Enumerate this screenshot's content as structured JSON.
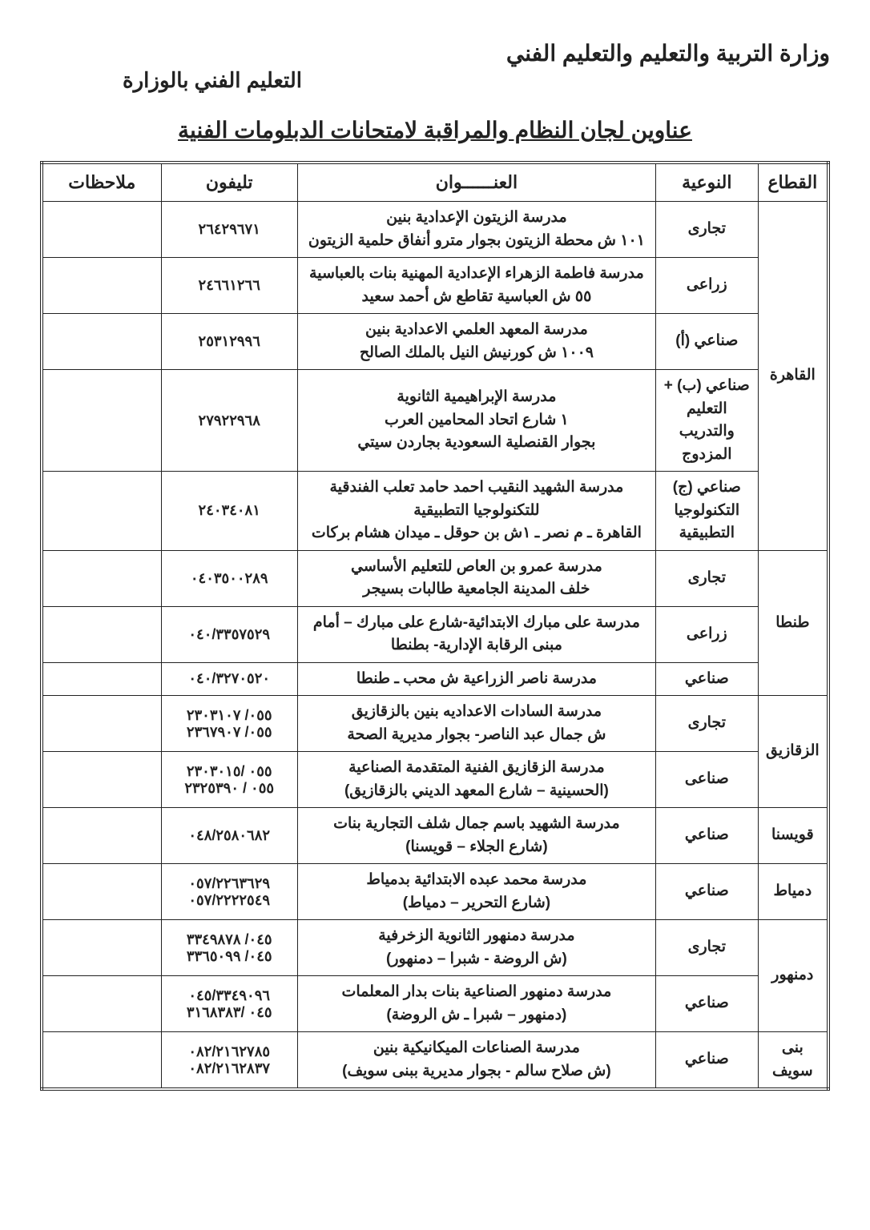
{
  "header": {
    "line1": "وزارة التربية والتعليم والتعليم الفني",
    "line2": "التعليم الفني بالوزارة"
  },
  "title": "عناوين لجان النظام والمراقبة لامتحانات الدبلومات الفنية",
  "columns": {
    "sector": "القطاع",
    "type": "النوعية",
    "address": "العنــــــوان",
    "phone": "تليفون",
    "notes": "ملاحظات"
  },
  "sectors": [
    {
      "name": "القاهرة",
      "rows": [
        {
          "type": "تجارى",
          "address": "مدرسة الزيتون الإعدادية بنين\n١٠١ ش محطة الزيتون بجوار مترو أنفاق حلمية الزيتون",
          "phone": "٢٦٤٢٩٦٧١",
          "notes": ""
        },
        {
          "type": "زراعى",
          "address": "مدرسة فاطمة الزهراء الإعدادية المهنية بنات بالعباسية\n٥٥ ش العباسية تقاطع ش أحمد سعيد",
          "phone": "٢٤٦٦١٢٦٦",
          "notes": ""
        },
        {
          "type": "صناعي (أ)",
          "address": "مدرسة المعهد العلمي الاعدادية بنين\n١٠٠٩ ش كورنيش النيل بالملك الصالح",
          "phone": "٢٥٣١٢٩٩٦",
          "notes": ""
        },
        {
          "type": "صناعي (ب) + التعليم والتدريب المزدوج",
          "address": "مدرسة الإبراهيمية الثانوية\n١ شارع اتحاد المحامين العرب\nبجوار القنصلية السعودية بجاردن سيتي",
          "phone": "٢٧٩٢٢٩٦٨",
          "notes": ""
        },
        {
          "type": "صناعي (ج) التكنولوجيا التطبيقية",
          "address": "مدرسة الشهيد النقيب احمد حامد تعلب الفندقية للتكنولوجيا التطبيقية\nالقاهرة ـ م نصر ـ ١ش بن حوقل ـ ميدان هشام بركات",
          "phone": "٢٤٠٣٤٠٨١",
          "notes": ""
        }
      ]
    },
    {
      "name": "طنطا",
      "rows": [
        {
          "type": "تجارى",
          "address": "مدرسة عمرو بن العاص للتعليم الأساسي\nخلف المدينة الجامعية طالبات بسيجر",
          "phone": "٠٤٠٣٥٠٠٢٨٩",
          "notes": ""
        },
        {
          "type": "زراعى",
          "address": "مدرسة على مبارك الابتدائية-شارع على مبارك – أمام مبنى الرقابة الإدارية- بطنطا",
          "phone": "٠٤٠/٣٣٥٧٥٢٩",
          "notes": ""
        },
        {
          "type": "صناعي",
          "address": "مدرسة ناصر الزراعية ش محب ـ طنطا",
          "phone": "٠٤٠/٣٢٧٠٥٢٠",
          "notes": ""
        }
      ]
    },
    {
      "name": "الزقازيق",
      "rows": [
        {
          "type": "تجارى",
          "address": "مدرسة السادات الاعداديه بنين بالزقازيق\nش جمال عبد الناصر- بجوار مديرية الصحة",
          "phone": "٠٥٥/ ٢٣٠٣١٠٧\n٠٥٥/ ٢٣٦٧٩٠٧",
          "notes": ""
        },
        {
          "type": "صناعى",
          "address": "مدرسة الزقازيق الفنية المتقدمة الصناعية\n(الحسينية – شارع المعهد الديني بالزقازيق)",
          "phone": "٠٥٥ /٢٣٠٣٠١٥\n٠٥٥ / ٢٣٢٥٣٩٠",
          "notes": ""
        }
      ]
    },
    {
      "name": "قويسنا",
      "rows": [
        {
          "type": "صناعي",
          "address": "مدرسة الشهيد باسم جمال شلف التجارية بنات\n(شارع الجلاء – قويسنا)",
          "phone": "٠٤٨/٢٥٨٠٦٨٢",
          "notes": ""
        }
      ]
    },
    {
      "name": "دمياط",
      "rows": [
        {
          "type": "صناعي",
          "address": "مدرسة محمد عبده الابتدائية بدمياط\n(شارع التحرير – دمياط)",
          "phone": "٠٥٧/٢٢٦٣٦٢٩\n٠٥٧/٢٢٢٢٥٤٩",
          "notes": ""
        }
      ]
    },
    {
      "name": "دمنهور",
      "rows": [
        {
          "type": "تجارى",
          "address": "مدرسة دمنهور الثانوية الزخرفية\n(ش الروضة - شبرا – دمنهور)",
          "phone": "٠٤٥/ ٣٣٤٩٨٧٨\n٠٤٥/ ٣٣٦٥٠٩٩",
          "notes": ""
        },
        {
          "type": "صناعي",
          "address": "مدرسة دمنهور الصناعية بنات بدار المعلمات\n(دمنهور – شبرا ـ ش الروضة)",
          "phone": "٠٤٥/٣٣٤٩٠٩٦\n٠٤٥ /٣١٦٨٣٨٣",
          "notes": ""
        }
      ]
    },
    {
      "name": "بنى سويف",
      "rows": [
        {
          "type": "صناعي",
          "address": "مدرسة الصناعات الميكانيكية بنين\n(ش صلاح سالم - بجوار مديرية ببنى سويف)",
          "phone": "٠٨٢/٢١٦٢٧٨٥\n٠٨٢/٢١٦٢٨٣٧",
          "notes": ""
        }
      ]
    }
  ]
}
